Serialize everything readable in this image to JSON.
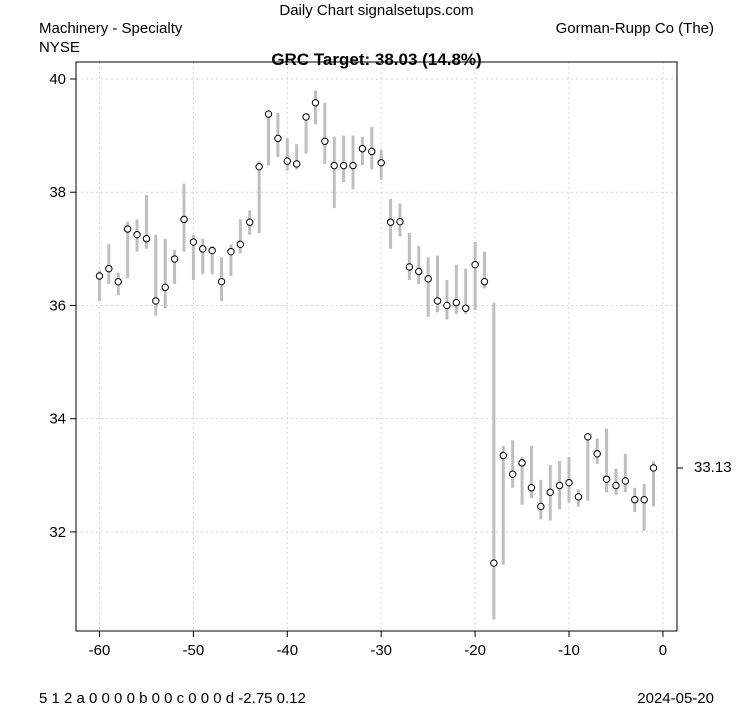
{
  "header": {
    "site": "Daily Chart signalsetups.com",
    "sector": "Machinery - Specialty",
    "exchange": "NYSE",
    "company": "Gorman-Rupp Co (The)"
  },
  "footer": {
    "codes": "5   1 2 a 0 0 0 0 b 0 0 c 0 0 0 d -2.75 0.12",
    "date": "2024-05-20"
  },
  "chart_data": {
    "type": "line",
    "title": "GRC Target: 38.03 (14.8%)",
    "xlabel": "",
    "ylabel": "",
    "xlim": [
      -62.5,
      1.5
    ],
    "ylim": [
      30.25,
      40.3
    ],
    "x_ticks": [
      -60,
      -50,
      -40,
      -30,
      -20,
      -10,
      0
    ],
    "x_tick_labels": [
      "-60",
      "-50",
      "-40",
      "-30",
      "-20",
      "-10",
      "0"
    ],
    "y_ticks": [
      32,
      34,
      36,
      38,
      40
    ],
    "y_tick_labels": [
      "32",
      "34",
      "36",
      "38",
      "40"
    ],
    "grid": true,
    "last_price_label": "33.13",
    "last_price": 33.13,
    "colors": {
      "range_bar": "#bebebe",
      "grid": "#d3d3d3",
      "point_fill": "#ffffff",
      "axis": "#000000"
    },
    "series": [
      {
        "x": [
          -60,
          -59,
          -58,
          -57,
          -56,
          -55,
          -54,
          -53,
          -52,
          -51,
          -50,
          -49,
          -48,
          -47,
          -46,
          -45,
          -44,
          -43,
          -42,
          -41,
          -40,
          -39,
          -38,
          -37,
          -36,
          -35,
          -34,
          -33,
          -32,
          -31,
          -30,
          -29,
          -28,
          -27,
          -26,
          -25,
          -24,
          -23,
          -22,
          -21,
          -20,
          -19,
          -18,
          -17,
          -16,
          -15,
          -14,
          -13,
          -12,
          -11,
          -10,
          -9,
          -8,
          -7,
          -6,
          -5,
          -4,
          -3,
          -2,
          -1
        ],
        "close": [
          36.52,
          36.65,
          36.42,
          37.35,
          37.25,
          37.18,
          36.08,
          36.32,
          36.82,
          37.52,
          37.12,
          37.0,
          36.97,
          36.42,
          36.95,
          37.08,
          37.47,
          38.45,
          39.38,
          38.95,
          38.55,
          38.5,
          39.33,
          39.58,
          38.9,
          38.47,
          38.47,
          38.47,
          38.77,
          38.72,
          38.52,
          37.47,
          37.48,
          36.68,
          36.6,
          36.47,
          36.08,
          36.0,
          36.05,
          35.95,
          36.72,
          36.42,
          31.45,
          33.35,
          33.02,
          33.22,
          32.78,
          32.45,
          32.7,
          32.82,
          32.87,
          32.62,
          33.68,
          33.38,
          32.93,
          32.82,
          32.9,
          32.57,
          32.57,
          33.13
        ],
        "low": [
          36.08,
          36.38,
          36.18,
          36.48,
          36.95,
          37.0,
          35.82,
          35.95,
          36.38,
          36.95,
          36.45,
          36.55,
          36.55,
          36.08,
          36.52,
          36.92,
          37.25,
          37.28,
          38.47,
          38.62,
          38.38,
          38.4,
          38.68,
          39.2,
          38.5,
          37.72,
          38.18,
          38.05,
          38.48,
          38.4,
          38.22,
          37.0,
          37.22,
          36.45,
          36.38,
          35.8,
          35.88,
          35.75,
          35.85,
          35.85,
          35.92,
          36.3,
          30.45,
          31.42,
          32.78,
          32.48,
          32.6,
          32.22,
          32.2,
          32.4,
          32.52,
          32.45,
          32.55,
          33.2,
          32.7,
          32.65,
          32.7,
          32.35,
          32.02,
          32.45
        ],
        "high": [
          36.62,
          37.08,
          36.58,
          37.48,
          37.52,
          37.95,
          37.25,
          37.18,
          36.98,
          38.15,
          37.25,
          37.18,
          37.05,
          36.85,
          37.08,
          37.52,
          37.68,
          38.55,
          39.38,
          39.4,
          38.95,
          38.85,
          39.35,
          39.8,
          39.58,
          38.98,
          39.0,
          39.0,
          38.98,
          39.15,
          38.75,
          37.88,
          37.8,
          37.28,
          37.05,
          36.85,
          36.88,
          36.45,
          36.72,
          36.65,
          37.12,
          36.95,
          36.05,
          33.52,
          33.62,
          33.32,
          33.52,
          32.92,
          33.18,
          33.25,
          33.32,
          32.75,
          33.72,
          33.65,
          33.82,
          33.12,
          33.38,
          32.78,
          32.85,
          33.25
        ]
      }
    ]
  }
}
